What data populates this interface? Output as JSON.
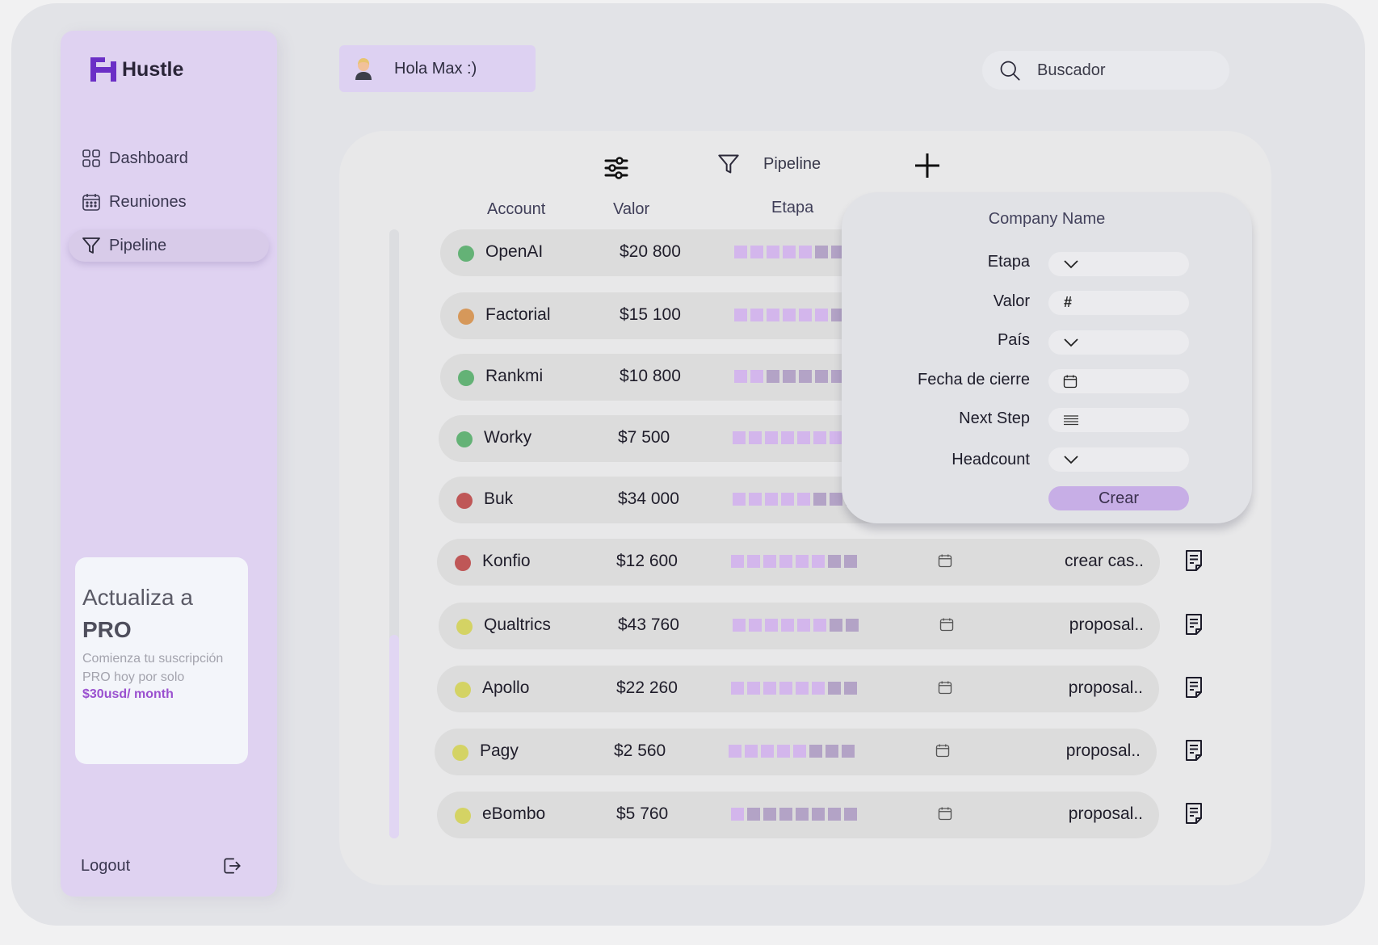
{
  "app": {
    "brand": "Hustle",
    "accent": "#6b2fc6"
  },
  "sidebar": {
    "items": [
      {
        "label": "Dashboard",
        "icon": "grid-icon"
      },
      {
        "label": "Reuniones",
        "icon": "calendar-icon"
      },
      {
        "label": "Pipeline",
        "icon": "filter-icon",
        "active": true
      }
    ],
    "promo": {
      "title_line1": "Actualiza a",
      "title_line2": "PRO",
      "text": "Comienza tu suscripción PRO hoy por solo",
      "price": "$30usd/ month"
    },
    "logout_label": "Logout"
  },
  "header": {
    "greeting": "Hola Max :)",
    "search_placeholder": "Buscador"
  },
  "toolbar": {
    "pipeline_label": "Pipeline"
  },
  "table": {
    "columns": [
      "Account",
      "Valor",
      "Etapa"
    ],
    "status_colors": {
      "green": "#64b276",
      "orange": "#d6985a",
      "red": "#bf5757",
      "yellow": "#d4d364"
    },
    "stage_colors": {
      "done": "#d3b6ec",
      "todo": "#b3a3c6"
    },
    "rows": [
      {
        "account": "OpenAI",
        "valor": "$20 800",
        "status": "green",
        "stage_done": 5,
        "next_step": ""
      },
      {
        "account": "Factorial",
        "valor": "$15 100",
        "status": "orange",
        "stage_done": 6,
        "next_step": ""
      },
      {
        "account": "Rankmi",
        "valor": "$10 800",
        "status": "green",
        "stage_done": 2,
        "next_step": ""
      },
      {
        "account": "Worky",
        "valor": "$7 500",
        "status": "green",
        "stage_done": 7,
        "next_step": ""
      },
      {
        "account": "Buk",
        "valor": "$34 000",
        "status": "red",
        "stage_done": 5,
        "next_step": ""
      },
      {
        "account": "Konfio",
        "valor": "$12 600",
        "status": "red",
        "stage_done": 6,
        "next_step": "crear cas.."
      },
      {
        "account": "Qualtrics",
        "valor": "$43 760",
        "status": "yellow",
        "stage_done": 6,
        "next_step": "proposal.."
      },
      {
        "account": "Apollo",
        "valor": "$22 260",
        "status": "yellow",
        "stage_done": 6,
        "next_step": "proposal.."
      },
      {
        "account": "Pagy",
        "valor": "$2 560",
        "status": "yellow",
        "stage_done": 5,
        "next_step": "proposal.."
      },
      {
        "account": "eBombo",
        "valor": "$5 760",
        "status": "yellow",
        "stage_done": 1,
        "next_step": "proposal.."
      }
    ]
  },
  "popover": {
    "title": "Company Name",
    "fields": [
      {
        "label": "Etapa",
        "icon": "chevron-down-icon"
      },
      {
        "label": "Valor",
        "icon": "hash-icon",
        "glyph": "#"
      },
      {
        "label": "País",
        "icon": "chevron-down-icon"
      },
      {
        "label": "Fecha de cierre",
        "icon": "calendar-icon"
      },
      {
        "label": "Next Step",
        "icon": "lines-icon"
      },
      {
        "label": "Headcount",
        "icon": "chevron-down-icon"
      }
    ],
    "submit_label": "Crear"
  }
}
